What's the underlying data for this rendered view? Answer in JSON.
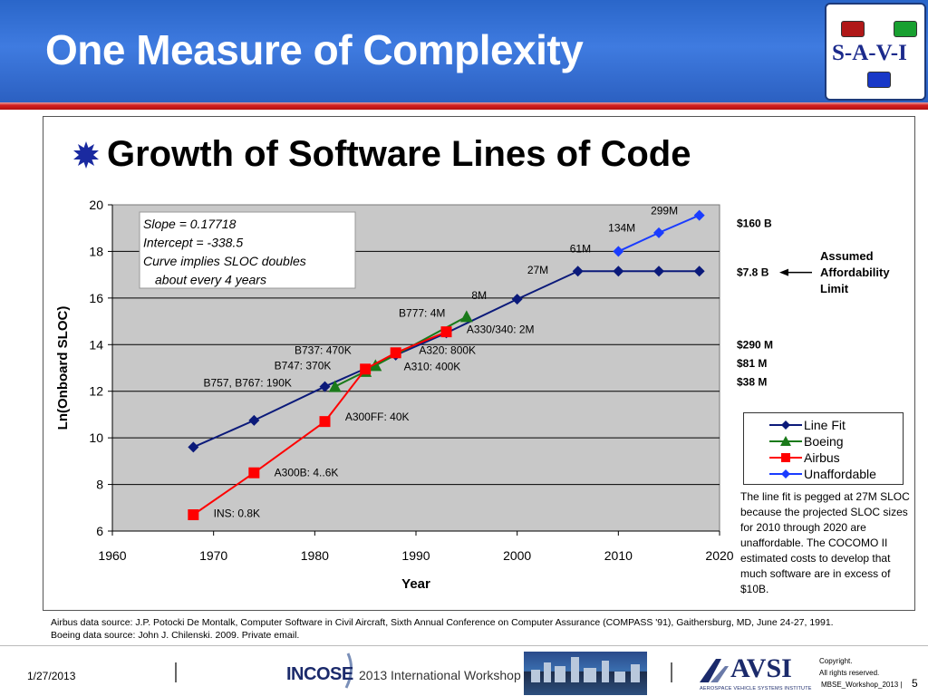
{
  "slide": {
    "title": "One Measure of Complexity",
    "subtitle": "Growth of Software Lines of Code",
    "logo_text": "S-A-V-I"
  },
  "chart_data": {
    "type": "line",
    "xlabel": "Year",
    "ylabel": "Ln(Onboard SLOC)",
    "xlim": [
      1960,
      2020
    ],
    "ylim": [
      6,
      20
    ],
    "x_ticks": [
      1960,
      1970,
      1980,
      1990,
      2000,
      2010,
      2020
    ],
    "y_ticks": [
      6,
      8,
      10,
      12,
      14,
      16,
      18,
      20
    ],
    "grid": "horizontal",
    "legend_position": "right",
    "series": [
      {
        "name": "Line Fit",
        "color": "#0b1a7a",
        "marker": "diamond",
        "x": [
          1968,
          1974,
          1981,
          1988,
          1993,
          2000,
          2006,
          2010,
          2014,
          2018
        ],
        "y": [
          9.6,
          10.75,
          12.2,
          13.55,
          14.5,
          15.95,
          17.15,
          17.15,
          17.15,
          17.15
        ]
      },
      {
        "name": "Boeing",
        "color": "#1a7a1a",
        "marker": "triangle",
        "x": [
          1982,
          1985,
          1986,
          1995
        ],
        "y": [
          12.2,
          12.85,
          13.1,
          15.2
        ]
      },
      {
        "name": "Airbus",
        "color": "#ff0000",
        "marker": "square",
        "x": [
          1968,
          1974,
          1981,
          1985,
          1988,
          1993
        ],
        "y": [
          6.7,
          8.5,
          10.7,
          12.95,
          13.65,
          14.55
        ]
      },
      {
        "name": "Unaffordable",
        "color": "#1a3cff",
        "marker": "diamond",
        "x": [
          2010,
          2014,
          2018
        ],
        "y": [
          18.0,
          18.8,
          19.55
        ]
      }
    ],
    "annotations": [
      {
        "text": "299M",
        "x": 2013.2,
        "y": 19.6
      },
      {
        "text": "134M",
        "x": 2009.0,
        "y": 18.85
      },
      {
        "text": "61M",
        "x": 2005.2,
        "y": 17.95
      },
      {
        "text": "27M",
        "x": 2001.0,
        "y": 17.05
      },
      {
        "text": "8M",
        "x": 1995.5,
        "y": 15.95
      },
      {
        "text": "B777: 4M",
        "x": 1988.3,
        "y": 15.2
      },
      {
        "text": "A330/340: 2M",
        "x": 1995.0,
        "y": 14.5
      },
      {
        "text": "B737: 470K",
        "x": 1978.0,
        "y": 13.6
      },
      {
        "text": "A320: 800K",
        "x": 1990.3,
        "y": 13.6
      },
      {
        "text": "B747: 370K",
        "x": 1976.0,
        "y": 12.95
      },
      {
        "text": "A310: 400K",
        "x": 1988.8,
        "y": 12.9
      },
      {
        "text": "B757, B767: 190K",
        "x": 1969.0,
        "y": 12.2
      },
      {
        "text": "A300FF: 40K",
        "x": 1983.0,
        "y": 10.75
      },
      {
        "text": "A300B: 4..6K",
        "x": 1976.0,
        "y": 8.35
      },
      {
        "text": "INS: 0.8K",
        "x": 1970.0,
        "y": 6.6
      }
    ],
    "text_box": [
      "Slope = 0.17718",
      "Intercept = -338.5",
      "Curve implies SLOC doubles",
      "about every 4 years"
    ],
    "cost_labels": [
      {
        "text": "$160 B",
        "y": 19.2
      },
      {
        "text": "$7.8 B",
        "y": 17.1
      },
      {
        "text": "$290 M",
        "y": 14.0
      },
      {
        "text": "$81 M",
        "y": 13.2
      },
      {
        "text": "$38 M",
        "y": 12.4
      }
    ],
    "affordability_label": [
      "Assumed",
      "Affordability",
      "Limit"
    ],
    "note": "The line fit is pegged at 27M SLOC because the projected SLOC sizes for 2010 through 2020 are unaffordable. The COCOMO II estimated costs to develop that much software are in excess of $10B."
  },
  "sources": [
    "Airbus data source: J.P. Potocki De Montalk, Computer Software in Civil Aircraft, Sixth Annual Conference on Computer Assurance (COMPASS '91), Gaithersburg, MD, June 24-27, 1991.",
    "Boeing data source: John J. Chilenski. 2009. Private email."
  ],
  "footer": {
    "date": "1/27/2013",
    "incose_name": "INCOSE",
    "incose_workshop": "2013 International Workshop",
    "avsi_name": "AVSI",
    "avsi_sub": "AEROSPACE VEHICLE SYSTEMS INSTITUTE",
    "copyright_1": "Copyright.",
    "copyright_2": "All rights reserved.",
    "doc_name": "MBSE_Workshop_2013 |",
    "page_number": "5"
  },
  "colors": {
    "header_blue": "#2f6ed6",
    "header_stripe": "#d42020",
    "plot_bg": "#c8c8c8"
  }
}
